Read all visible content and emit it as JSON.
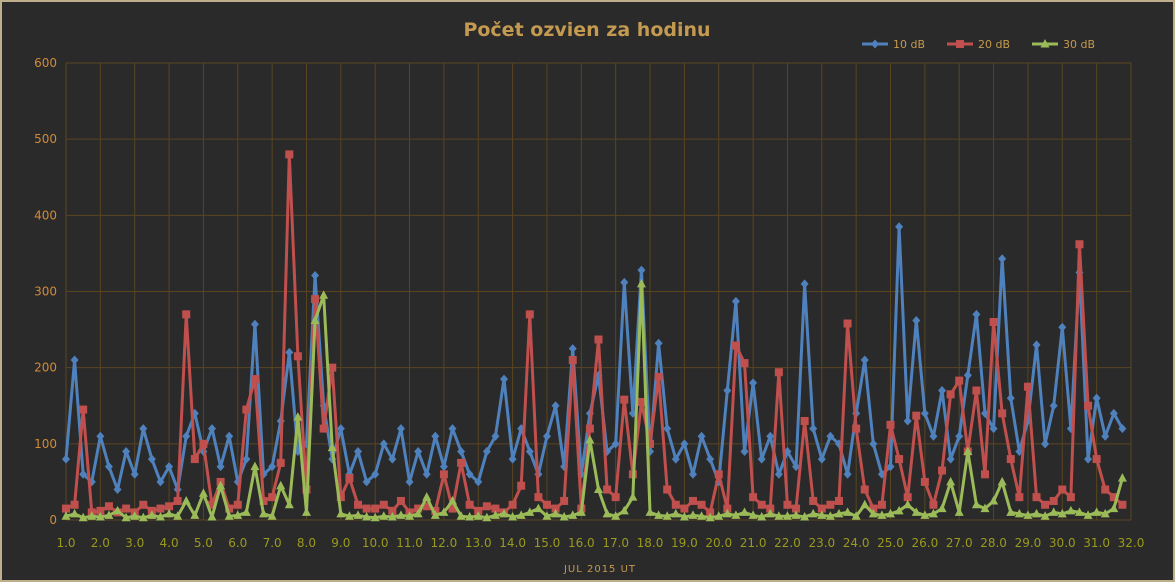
{
  "chart_data": {
    "type": "line",
    "title": "Počet ozvien za hodinu",
    "xlabel": "JUL 2015 UT",
    "ylabel": "",
    "xlim": [
      1,
      32
    ],
    "ylim": [
      0,
      600
    ],
    "grid": true,
    "legend_position": "top-right",
    "y_ticks": [
      "0",
      "100",
      "200",
      "300",
      "400",
      "500",
      "600"
    ],
    "x_ticks": [
      "1.0",
      "2.0",
      "3.0",
      "4.0",
      "5.0",
      "6.0",
      "7.0",
      "8.0",
      "9.0",
      "10.0",
      "11.0",
      "12.0",
      "13.0",
      "14.0",
      "15.0",
      "16.0",
      "17.0",
      "18.0",
      "19.0",
      "20.0",
      "21.0",
      "22.0",
      "23.0",
      "24.0",
      "25.0",
      "26.0",
      "27.0",
      "28.0",
      "29.0",
      "30.0",
      "31.0",
      "32.0"
    ],
    "x_start": 1,
    "x_step": 0.25,
    "series": [
      {
        "name": "10 dB",
        "color": "#4f81bd",
        "marker": "diamond",
        "values": [
          80,
          210,
          60,
          50,
          110,
          70,
          40,
          90,
          60,
          120,
          80,
          50,
          70,
          40,
          110,
          140,
          90,
          120,
          70,
          110,
          50,
          80,
          257,
          60,
          70,
          130,
          220,
          90,
          100,
          321,
          150,
          80,
          120,
          60,
          90,
          50,
          60,
          100,
          80,
          120,
          50,
          90,
          60,
          110,
          70,
          120,
          90,
          60,
          50,
          90,
          110,
          185,
          80,
          120,
          90,
          60,
          110,
          150,
          70,
          225,
          60,
          140,
          190,
          90,
          100,
          312,
          140,
          328,
          90,
          232,
          120,
          80,
          100,
          60,
          110,
          80,
          50,
          170,
          287,
          90,
          180,
          80,
          110,
          60,
          90,
          70,
          310,
          120,
          80,
          110,
          100,
          60,
          140,
          210,
          100,
          60,
          70,
          385,
          130,
          262,
          140,
          110,
          170,
          80,
          110,
          190,
          270,
          140,
          120,
          343,
          160,
          90,
          130,
          230,
          100,
          150,
          253,
          120,
          325,
          80,
          160,
          110,
          140,
          120
        ]
      },
      {
        "name": "20 dB",
        "color": "#c0504d",
        "marker": "square",
        "values": [
          15,
          20,
          145,
          10,
          12,
          18,
          10,
          15,
          10,
          20,
          12,
          15,
          18,
          25,
          270,
          80,
          100,
          20,
          50,
          15,
          20,
          145,
          185,
          25,
          30,
          75,
          480,
          215,
          40,
          290,
          120,
          200,
          30,
          55,
          20,
          15,
          15,
          20,
          12,
          25,
          10,
          15,
          18,
          12,
          60,
          15,
          75,
          20,
          12,
          18,
          15,
          10,
          20,
          45,
          270,
          30,
          20,
          15,
          25,
          210,
          15,
          120,
          237,
          40,
          30,
          158,
          60,
          155,
          100,
          188,
          40,
          20,
          15,
          25,
          20,
          10,
          60,
          15,
          229,
          206,
          30,
          20,
          15,
          194,
          20,
          15,
          130,
          25,
          15,
          20,
          25,
          258,
          120,
          40,
          15,
          20,
          125,
          80,
          30,
          137,
          50,
          20,
          65,
          165,
          183,
          90,
          170,
          60,
          260,
          140,
          80,
          30,
          175,
          30,
          20,
          25,
          40,
          30,
          362,
          150,
          80,
          40,
          30,
          20
        ]
      },
      {
        "name": "30 dB",
        "color": "#9bbb59",
        "marker": "triangle",
        "values": [
          5,
          8,
          3,
          5,
          4,
          6,
          12,
          3,
          5,
          3,
          6,
          4,
          8,
          5,
          25,
          6,
          35,
          4,
          45,
          5,
          6,
          10,
          70,
          8,
          5,
          45,
          20,
          135,
          10,
          262,
          295,
          95,
          8,
          5,
          6,
          4,
          3,
          5,
          4,
          6,
          5,
          8,
          30,
          6,
          10,
          25,
          5,
          4,
          5,
          3,
          6,
          8,
          4,
          6,
          10,
          15,
          5,
          8,
          4,
          6,
          10,
          105,
          40,
          8,
          5,
          12,
          30,
          310,
          10,
          6,
          5,
          8,
          4,
          6,
          5,
          3,
          5,
          8,
          6,
          10,
          6,
          4,
          8,
          5,
          5,
          6,
          4,
          8,
          6,
          5,
          8,
          10,
          5,
          20,
          8,
          6,
          8,
          12,
          20,
          10,
          6,
          8,
          15,
          50,
          10,
          90,
          20,
          15,
          25,
          50,
          10,
          8,
          6,
          8,
          5,
          10,
          8,
          12,
          10,
          6,
          10,
          8,
          15,
          55
        ]
      }
    ]
  }
}
